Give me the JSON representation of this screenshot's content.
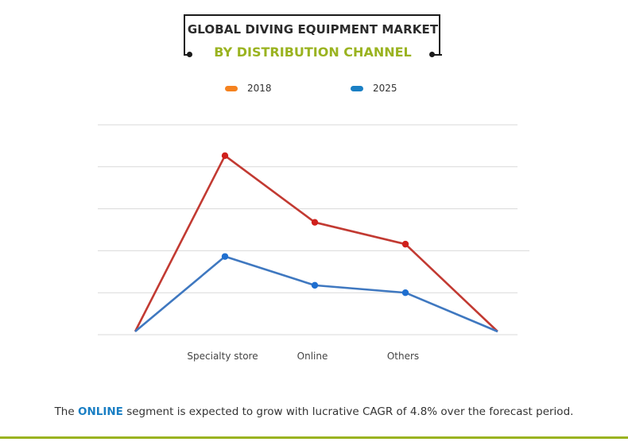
{
  "title": {
    "line1": "GLOBAL DIVING EQUIPMENT MARKET",
    "line2": "BY DISTRIBUTION CHANNEL"
  },
  "colors": {
    "series_2018_legend": "#f5821f",
    "series_2025_legend": "#1a7fc4",
    "series_2018_line": "#c23a32",
    "series_2025_line": "#3f78c0",
    "accent_green": "#9ab320",
    "highlight_blue": "#1a7fc4"
  },
  "legend": [
    {
      "label": "2018",
      "color": "#f5821f"
    },
    {
      "label": "2025",
      "color": "#1a7fc4"
    }
  ],
  "footer": {
    "prefix": "The",
    "highlight": "ONLINE",
    "suffix": "segment is expected to grow with lucrative CAGR of 4.8% over the forecast period."
  },
  "chart_data": {
    "type": "line",
    "title": "Global Diving Equipment Market by Distribution Channel",
    "xlabel": "",
    "ylabel": "",
    "categories": [
      "",
      "Specialty store",
      "Online",
      "Others",
      ""
    ],
    "series": [
      {
        "name": "2018",
        "values": [
          0,
          4.35,
          2.73,
          2.2,
          0
        ]
      },
      {
        "name": "2025",
        "values": [
          0,
          1.9,
          1.2,
          1.02,
          0
        ]
      }
    ],
    "ylim": [
      0,
      5.1
    ],
    "grid": true,
    "gridline_count": 6,
    "legend_position": "top",
    "value_units": "relative (no axis tick labels shown)"
  }
}
